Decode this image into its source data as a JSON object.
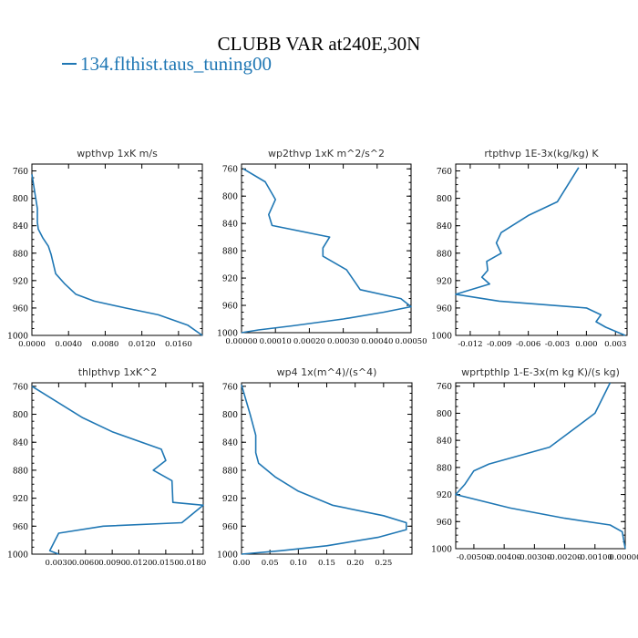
{
  "figure": {
    "title": "CLUBB VAR at240E,30N",
    "legend": [
      {
        "label": "134.flthist.taus_tuning00",
        "color": "#1f77b4"
      }
    ],
    "line_color": "#1f77b4"
  },
  "chart_data": [
    {
      "type": "line",
      "title": "wpthvp  1xK m/s",
      "xlim": [
        0.0,
        0.0186
      ],
      "ylim": [
        1000,
        750
      ],
      "xticks": [
        "0.0000",
        "0.0040",
        "0.0080",
        "0.0120",
        "0.0160"
      ],
      "xtick_values": [
        0,
        0.004,
        0.008,
        0.012,
        0.016
      ],
      "yticks": [
        760,
        800,
        840,
        880,
        920,
        960,
        1000
      ],
      "series": [
        {
          "x": [
            0.0,
            0.0003,
            0.0006,
            0.0006,
            0.0007,
            0.0012,
            0.0018,
            0.0021,
            0.0026,
            0.0036,
            0.0048,
            0.0068,
            0.0102,
            0.0138,
            0.017,
            0.0186
          ],
          "y": [
            765,
            790,
            815,
            835,
            845,
            858,
            870,
            882,
            910,
            925,
            940,
            950,
            960,
            970,
            985,
            1000
          ]
        }
      ]
    },
    {
      "type": "line",
      "title": "wp2thvp  1xK m^2/s^2",
      "xlim": [
        0.0,
        0.0005
      ],
      "ylim": [
        1000,
        753
      ],
      "xticks": [
        "0.00000",
        "0.00010",
        "0.00020",
        "0.00030",
        "0.00040",
        "0.00050"
      ],
      "xtick_values": [
        0,
        0.0001,
        0.0002,
        0.0003,
        0.0004,
        0.0005
      ],
      "yticks": [
        760,
        800,
        840,
        880,
        920,
        960,
        1000
      ],
      "series": [
        {
          "x": [
            5e-06,
            7e-05,
            0.0001,
            8e-05,
            9e-05,
            0.00026,
            0.00024,
            0.00024,
            0.00031,
            0.00035,
            0.00047,
            0.0005,
            0.00042,
            0.0003,
            0.00015,
            5e-05,
            0.0
          ],
          "y": [
            760,
            779,
            805,
            827,
            843,
            860,
            876,
            888,
            908,
            937,
            950,
            962,
            970,
            980,
            990,
            996,
            1000
          ]
        }
      ]
    },
    {
      "type": "line",
      "title": "rtpthvp  1E-3x(kg/kg) K",
      "xlim": [
        -0.0135,
        0.0042
      ],
      "ylim": [
        1000,
        750
      ],
      "xticks": [
        "-0.012",
        "-0.009",
        "-0.006",
        "-0.003",
        "0.000",
        "0.003"
      ],
      "xtick_values": [
        -0.012,
        -0.009,
        -0.006,
        -0.003,
        0.0,
        0.003
      ],
      "yticks": [
        760,
        800,
        840,
        880,
        920,
        960,
        1000
      ],
      "series": [
        {
          "x": [
            -0.0008,
            -0.003,
            -0.006,
            -0.0088,
            -0.0093,
            -0.0088,
            -0.0103,
            -0.0102,
            -0.0108,
            -0.01,
            -0.0135,
            -0.009,
            0.0,
            0.0015,
            0.001,
            0.002,
            0.004
          ],
          "y": [
            755,
            805,
            825,
            850,
            865,
            880,
            892,
            905,
            915,
            925,
            940,
            950,
            960,
            970,
            980,
            988,
            1000
          ]
        }
      ]
    },
    {
      "type": "line",
      "title": "thlpthvp  1xK^2",
      "xlim": [
        0.0,
        0.0192
      ],
      "ylim": [
        1000,
        755
      ],
      "xticks": [
        "0.0030",
        "0.0060",
        "0.0090",
        "0.0120",
        "0.0150",
        "0.0180"
      ],
      "xtick_values": [
        0.003,
        0.006,
        0.009,
        0.012,
        0.015,
        0.018
      ],
      "yticks": [
        760,
        800,
        840,
        880,
        920,
        960,
        1000
      ],
      "series": [
        {
          "x": [
            0.0,
            0.0057,
            0.009,
            0.0145,
            0.015,
            0.0136,
            0.0157,
            0.0158,
            0.0192,
            0.0168,
            0.008,
            0.003,
            0.002,
            0.003
          ],
          "y": [
            760,
            805,
            825,
            850,
            866,
            880,
            895,
            926,
            930,
            955,
            960,
            970,
            995,
            1000
          ]
        }
      ]
    },
    {
      "type": "line",
      "title": "wp4  1x(m^4)/(s^4)",
      "xlim": [
        0.0,
        0.3
      ],
      "ylim": [
        1000,
        755
      ],
      "xticks": [
        "0.00",
        "0.05",
        "0.10",
        "0.15",
        "0.20",
        "0.25"
      ],
      "xtick_values": [
        0.0,
        0.05,
        0.1,
        0.15,
        0.2,
        0.25
      ],
      "yticks": [
        760,
        800,
        840,
        880,
        920,
        960,
        1000
      ],
      "series": [
        {
          "x": [
            0.0,
            0.015,
            0.025,
            0.025,
            0.03,
            0.06,
            0.1,
            0.16,
            0.25,
            0.29,
            0.29,
            0.24,
            0.15,
            0.07,
            0.0
          ],
          "y": [
            758,
            800,
            830,
            855,
            870,
            890,
            910,
            930,
            945,
            955,
            965,
            976,
            988,
            995,
            1000
          ]
        }
      ]
    },
    {
      "type": "line",
      "title": "wprtpthlp  1-E-3x(m kg K)/(s kg)",
      "xlim": [
        -0.0056,
        0.0
      ],
      "ylim": [
        1000,
        755
      ],
      "xticks": [
        "-0.00500",
        "-0.00400",
        "-0.00300",
        "-0.00200",
        "-0.00100",
        "0.00000"
      ],
      "xtick_values": [
        -0.005,
        -0.004,
        -0.003,
        -0.002,
        -0.001,
        0.0
      ],
      "yticks": [
        760,
        800,
        840,
        880,
        920,
        960,
        1000
      ],
      "series": [
        {
          "x": [
            -0.0005,
            -0.001,
            -0.0025,
            -0.0045,
            -0.005,
            -0.0053,
            -0.0056,
            -0.0038,
            -0.002,
            -0.0005,
            -0.0001,
            0.0
          ],
          "y": [
            755,
            800,
            850,
            875,
            885,
            905,
            920,
            940,
            955,
            965,
            975,
            1000
          ]
        }
      ]
    }
  ]
}
